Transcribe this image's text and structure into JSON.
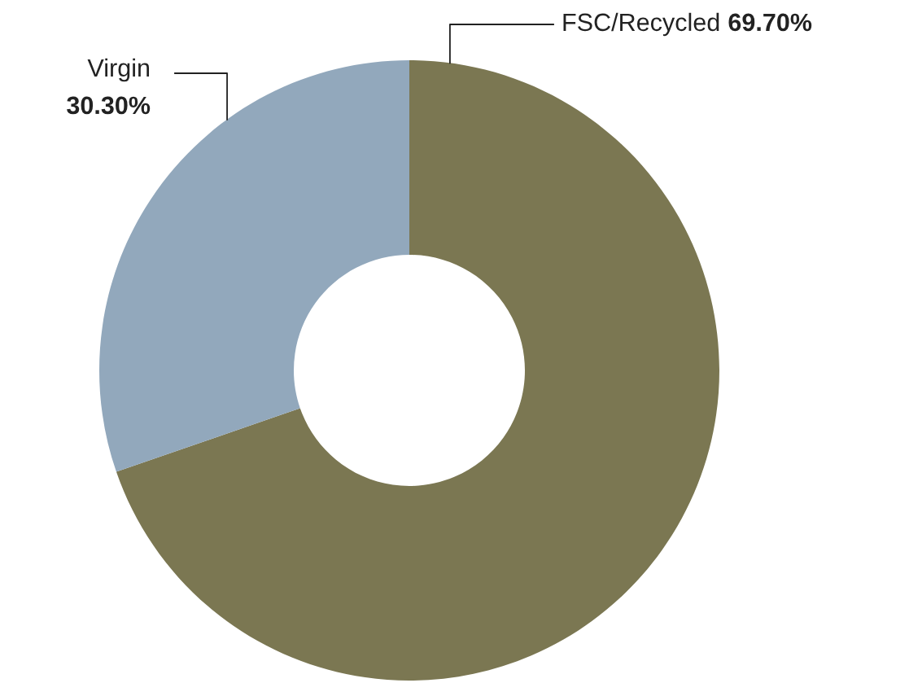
{
  "chart_data": {
    "type": "donut",
    "categories": [
      "FSC/Recycled",
      "Virgin"
    ],
    "values": [
      69.7,
      30.3
    ],
    "colors": [
      "#7b7752",
      "#92a8bc"
    ],
    "value_labels": [
      "69.70%",
      "30.30%"
    ],
    "legend": false
  }
}
